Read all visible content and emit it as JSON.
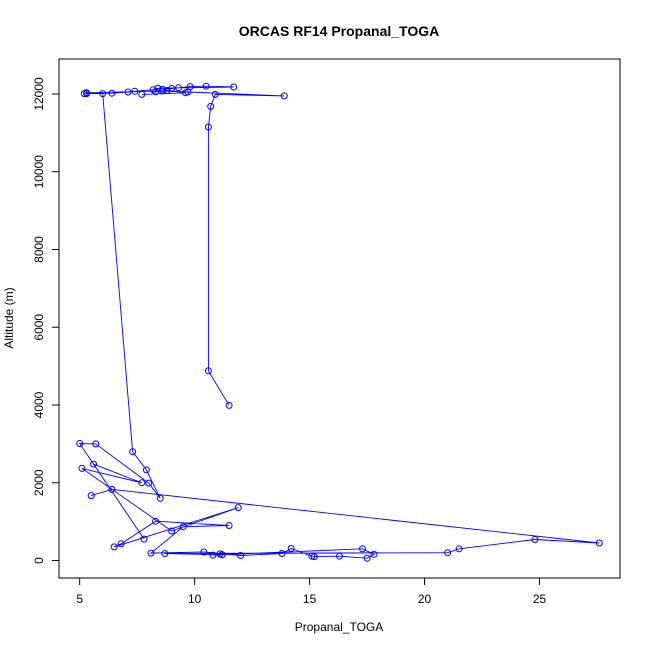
{
  "chart_data": {
    "type": "line",
    "title": "ORCAS RF14 Propanal_TOGA",
    "xlabel": "Propanal_TOGA",
    "ylabel": "Altitude (m)",
    "xlim": [
      4.1,
      28.5
    ],
    "ylim": [
      -450,
      12900
    ],
    "xticks": [
      5,
      10,
      15,
      20,
      25
    ],
    "yticks": [
      0,
      2000,
      4000,
      6000,
      8000,
      10000,
      12000
    ],
    "grid": false,
    "legend": "none",
    "series_color": "#0000ff",
    "series": [
      {
        "marker": "open-circle",
        "x": [
          11.5,
          10.6,
          10.6,
          10.7,
          10.9,
          13.9,
          9.7,
          8.6,
          5.3,
          5.2,
          6.0,
          7.3,
          7.9,
          8.5,
          8.0,
          5.7,
          5.0,
          7.8,
          5.6,
          7.7,
          5.1,
          9.0,
          11.9,
          6.5,
          6.8,
          8.3,
          11.5,
          9.5,
          8.1,
          10.4,
          12.0,
          13.8,
          14.2,
          15.1,
          15.2,
          16.3,
          17.5,
          17.8,
          17.3,
          11.2,
          10.8,
          11.1,
          11.2,
          8.7,
          21.0,
          21.5,
          24.8,
          27.6,
          6.4,
          5.5
        ],
        "y": [
          3990,
          4880,
          11150,
          11680,
          11990,
          11950,
          12050,
          12080,
          12030,
          12010,
          12010,
          2800,
          2330,
          1600,
          1990,
          3000,
          3010,
          550,
          2480,
          2000,
          2370,
          760,
          1360,
          350,
          430,
          1010,
          900,
          870,
          190,
          220,
          130,
          180,
          310,
          110,
          100,
          110,
          60,
          160,
          300,
          150,
          140,
          170,
          150,
          180,
          200,
          300,
          540,
          450,
          1830,
          1670
        ]
      },
      {
        "marker": "open-circle",
        "x": [
          5.3,
          6.4,
          7.1,
          7.4,
          8.2,
          8.4,
          8.6,
          9.0,
          9.3,
          9.8,
          10.5,
          11.7,
          8.4,
          8.3,
          8.8,
          9.6,
          7.7
        ],
        "y": [
          12010,
          12020,
          12050,
          12070,
          12110,
          12150,
          12120,
          12140,
          12160,
          12190,
          12200,
          12180,
          12150,
          12060,
          12090,
          12030,
          11990
        ]
      }
    ]
  }
}
